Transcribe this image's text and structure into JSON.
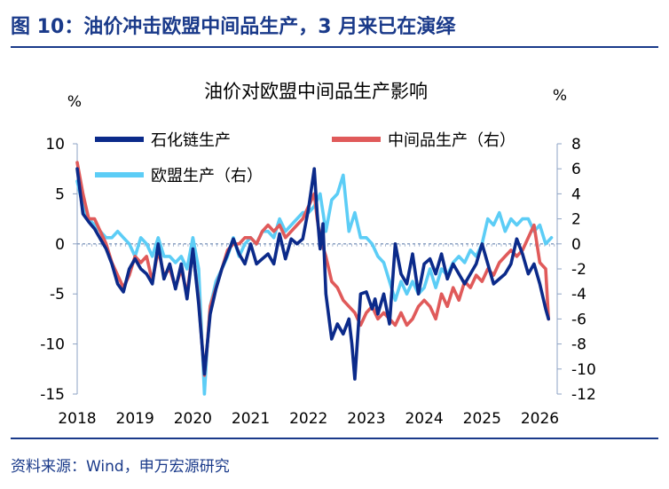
{
  "figure": {
    "title": "图 10：油价冲击欧盟中间品生产，3 月来已在演绎",
    "source": "资料来源：Wind，申万宏源研究"
  },
  "colors": {
    "title_blue": "#1a3a8a",
    "petrochem": "#0b2a8a",
    "intermediate": "#e05a5a",
    "eu_production": "#5ccdf6"
  },
  "chart_data": {
    "type": "line",
    "title": "油价对欧盟中间品生产影响",
    "left_unit": "%",
    "right_unit": "%",
    "grid": false,
    "legend_position": "top",
    "x_ticks": [
      "2018",
      "2019",
      "2020",
      "2021",
      "2022",
      "2023",
      "2024",
      "2025",
      "2026"
    ],
    "x_range": [
      2018,
      2026.3
    ],
    "y_left": {
      "range": [
        -15,
        10
      ],
      "ticks": [
        "10",
        "5",
        "0",
        "-5",
        "-10",
        "-15"
      ]
    },
    "y_right": {
      "range": [
        -12,
        8
      ],
      "ticks": [
        "8",
        "6",
        "4",
        "2",
        "0",
        "-2",
        "-4",
        "-6",
        "-8",
        "-10",
        "-12"
      ]
    },
    "series": [
      {
        "name": "石化链生产",
        "axis": "left",
        "color": "#0b2a8a",
        "x": [
          2018.0,
          2018.1,
          2018.2,
          2018.3,
          2018.4,
          2018.5,
          2018.6,
          2018.7,
          2018.8,
          2018.9,
          2019.0,
          2019.1,
          2019.2,
          2019.3,
          2019.4,
          2019.5,
          2019.6,
          2019.7,
          2019.8,
          2019.9,
          2020.0,
          2020.1,
          2020.2,
          2020.25,
          2020.3,
          2020.4,
          2020.5,
          2020.6,
          2020.7,
          2020.8,
          2020.9,
          2021.0,
          2021.1,
          2021.2,
          2021.3,
          2021.4,
          2021.5,
          2021.6,
          2021.7,
          2021.8,
          2021.9,
          2022.0,
          2022.1,
          2022.15,
          2022.2,
          2022.25,
          2022.3,
          2022.4,
          2022.5,
          2022.6,
          2022.7,
          2022.75,
          2022.8,
          2022.9,
          2023.0,
          2023.1,
          2023.15,
          2023.2,
          2023.3,
          2023.4,
          2023.5,
          2023.6,
          2023.7,
          2023.8,
          2023.9,
          2024.0,
          2024.1,
          2024.2,
          2024.3,
          2024.4,
          2024.5,
          2024.6,
          2024.7,
          2024.8,
          2024.9,
          2025.0,
          2025.1,
          2025.2,
          2025.3,
          2025.4,
          2025.5,
          2025.6,
          2025.7,
          2025.8,
          2025.9,
          2026.0,
          2026.1,
          2026.15
        ],
        "y": [
          7.5,
          3.0,
          2.2,
          1.5,
          0.5,
          -0.5,
          -2.0,
          -4.0,
          -4.8,
          -2.5,
          -1.5,
          -2.5,
          -3.0,
          -4.0,
          0.0,
          -3.5,
          -2.0,
          -4.5,
          -2.0,
          -5.5,
          -0.5,
          -6.0,
          -13.0,
          -10.0,
          -7.0,
          -4.5,
          -2.5,
          -1.0,
          0.5,
          -1.0,
          -2.0,
          0.0,
          -2.0,
          -1.5,
          -1.0,
          -2.0,
          1.0,
          -1.5,
          0.5,
          0.0,
          0.5,
          3.5,
          7.5,
          3.0,
          -0.5,
          2.0,
          -5.0,
          -9.5,
          -8.0,
          -9.0,
          -7.5,
          -10.0,
          -13.5,
          -5.0,
          -4.8,
          -6.5,
          -5.5,
          -7.0,
          -5.0,
          -8.0,
          0.0,
          -3.0,
          -4.0,
          -1.0,
          -5.0,
          -2.0,
          -1.5,
          -3.0,
          -1.0,
          -3.5,
          -2.0,
          -3.0,
          -4.0,
          -3.0,
          -2.0,
          0.0,
          -2.0,
          -4.0,
          -3.5,
          -3.0,
          -2.0,
          0.5,
          -1.0,
          -3.0,
          -2.0,
          -4.0,
          -6.5,
          -7.5
        ]
      },
      {
        "name": "中间品生产（右）",
        "axis": "right",
        "color": "#e05a5a",
        "x": [
          2018.0,
          2018.1,
          2018.2,
          2018.3,
          2018.4,
          2018.5,
          2018.6,
          2018.7,
          2018.8,
          2018.9,
          2019.0,
          2019.1,
          2019.2,
          2019.3,
          2019.4,
          2019.5,
          2019.6,
          2019.7,
          2019.8,
          2019.9,
          2020.0,
          2020.1,
          2020.2,
          2020.25,
          2020.3,
          2020.4,
          2020.5,
          2020.6,
          2020.7,
          2020.8,
          2020.9,
          2021.0,
          2021.1,
          2021.2,
          2021.3,
          2021.4,
          2021.5,
          2021.6,
          2021.7,
          2021.8,
          2021.9,
          2022.0,
          2022.1,
          2022.15,
          2022.2,
          2022.3,
          2022.4,
          2022.5,
          2022.6,
          2022.7,
          2022.8,
          2022.9,
          2023.0,
          2023.1,
          2023.2,
          2023.3,
          2023.4,
          2023.5,
          2023.6,
          2023.7,
          2023.8,
          2023.9,
          2024.0,
          2024.1,
          2024.2,
          2024.3,
          2024.4,
          2024.5,
          2024.6,
          2024.7,
          2024.8,
          2024.9,
          2025.0,
          2025.1,
          2025.2,
          2025.3,
          2025.4,
          2025.5,
          2025.6,
          2025.7,
          2025.8,
          2025.9,
          2026.0,
          2026.1,
          2026.15
        ],
        "y": [
          6.5,
          4.0,
          2.0,
          2.0,
          1.0,
          0.0,
          -1.5,
          -2.5,
          -3.5,
          -2.5,
          -1.0,
          -1.5,
          -1.0,
          -3.0,
          -0.5,
          -2.5,
          -2.0,
          -3.5,
          -2.0,
          -4.0,
          -0.5,
          -4.5,
          -10.5,
          -8.0,
          -5.0,
          -3.5,
          -2.0,
          -0.5,
          0.0,
          0.0,
          0.5,
          0.5,
          0.0,
          1.0,
          1.5,
          1.0,
          1.5,
          0.5,
          1.0,
          1.5,
          2.0,
          3.0,
          4.0,
          2.0,
          0.5,
          -1.0,
          -3.0,
          -3.5,
          -4.5,
          -5.0,
          -5.5,
          -6.5,
          -5.5,
          -5.0,
          -6.0,
          -5.5,
          -6.0,
          -6.5,
          -5.5,
          -6.5,
          -6.0,
          -5.0,
          -4.5,
          -5.0,
          -6.0,
          -4.0,
          -5.0,
          -3.5,
          -4.5,
          -3.0,
          -3.5,
          -2.5,
          -3.0,
          -2.0,
          -2.5,
          -1.5,
          -1.0,
          -0.5,
          -1.0,
          -0.5,
          0.5,
          1.5,
          -1.5,
          -2.0,
          -6.0
        ]
      },
      {
        "name": "欧盟生产（右）",
        "axis": "right",
        "color": "#5ccdf6",
        "x": [
          2018.0,
          2018.1,
          2018.2,
          2018.3,
          2018.4,
          2018.5,
          2018.6,
          2018.7,
          2018.8,
          2018.9,
          2019.0,
          2019.1,
          2019.2,
          2019.3,
          2019.4,
          2019.5,
          2019.6,
          2019.7,
          2019.8,
          2019.9,
          2020.0,
          2020.1,
          2020.2,
          2020.25,
          2020.3,
          2020.4,
          2020.5,
          2020.6,
          2020.7,
          2020.8,
          2020.9,
          2021.0,
          2021.1,
          2021.2,
          2021.3,
          2021.4,
          2021.5,
          2021.6,
          2021.7,
          2021.8,
          2021.9,
          2022.0,
          2022.1,
          2022.2,
          2022.3,
          2022.4,
          2022.5,
          2022.6,
          2022.7,
          2022.8,
          2022.9,
          2023.0,
          2023.1,
          2023.2,
          2023.3,
          2023.4,
          2023.5,
          2023.6,
          2023.7,
          2023.8,
          2023.9,
          2024.0,
          2024.1,
          2024.2,
          2024.3,
          2024.4,
          2024.5,
          2024.6,
          2024.7,
          2024.8,
          2024.9,
          2025.0,
          2025.1,
          2025.2,
          2025.3,
          2025.4,
          2025.5,
          2025.6,
          2025.7,
          2025.8,
          2025.9,
          2026.0,
          2026.1,
          2026.2
        ],
        "y": [
          5.0,
          3.0,
          2.0,
          1.5,
          1.0,
          0.5,
          0.5,
          1.0,
          0.5,
          0.0,
          -1.0,
          0.5,
          0.0,
          -1.0,
          0.5,
          -1.0,
          -1.0,
          -1.5,
          -1.0,
          -2.0,
          0.5,
          -2.0,
          -12.0,
          -8.0,
          -5.0,
          -3.0,
          -2.0,
          -1.0,
          0.5,
          -1.0,
          0.0,
          0.5,
          0.0,
          1.0,
          1.0,
          0.5,
          2.0,
          1.0,
          1.5,
          2.0,
          2.5,
          2.5,
          3.0,
          4.0,
          1.0,
          3.5,
          4.0,
          5.5,
          1.0,
          2.5,
          0.5,
          0.5,
          0.0,
          -1.0,
          -1.5,
          -3.0,
          -4.5,
          -3.0,
          -4.0,
          -3.0,
          -4.0,
          -3.5,
          -2.0,
          -3.5,
          -2.0,
          -2.5,
          -1.5,
          -1.0,
          -1.5,
          -0.5,
          -1.0,
          0.0,
          2.0,
          1.5,
          2.5,
          1.0,
          2.0,
          1.5,
          2.0,
          2.0,
          1.0,
          1.5,
          0.0,
          0.5
        ]
      }
    ]
  }
}
